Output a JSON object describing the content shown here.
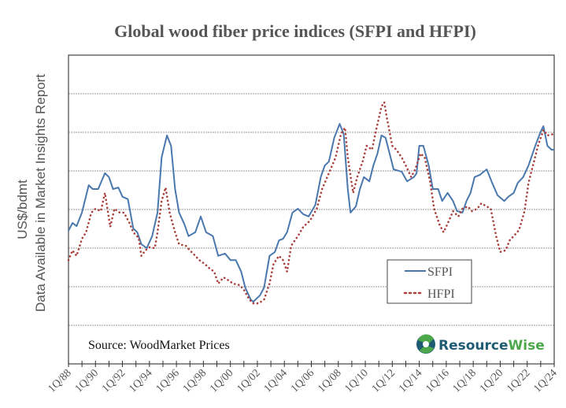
{
  "chart_data": {
    "type": "line",
    "title": "Global wood fiber price indices (SFPI and HFPI)",
    "xlabel": "",
    "ylabel": "US$/bdmt",
    "ylabel_note": "Data Available in Market Insights Report",
    "xlim": [
      1988,
      2024
    ],
    "ylim": [
      0,
      8
    ],
    "grid": true,
    "legend_position": "lower-right",
    "x_tick_labels": [
      "1Q/88",
      "1Q/90",
      "1Q/92",
      "1Q/94",
      "1Q/96",
      "1Q/98",
      "1Q/00",
      "1Q/02",
      "1Q/04",
      "1Q/06",
      "1Q/08",
      "1Q/10",
      "1Q/12",
      "1Q/14",
      "1Q/16",
      "1Q/18",
      "1Q/20",
      "1Q/22",
      "1Q/24"
    ],
    "annotation": "Source: WoodMarket Prices",
    "logo": {
      "part1": "Resource",
      "part2": "Wise"
    },
    "series": [
      {
        "name": "SFPI",
        "color": "#4a78ad",
        "style": "solid",
        "points": [
          [
            1988.0,
            3.45
          ],
          [
            1988.3,
            3.65
          ],
          [
            1988.6,
            3.57
          ],
          [
            1989.0,
            3.92
          ],
          [
            1989.5,
            4.63
          ],
          [
            1989.8,
            4.53
          ],
          [
            1990.2,
            4.53
          ],
          [
            1990.7,
            4.94
          ],
          [
            1991.0,
            4.84
          ],
          [
            1991.3,
            4.53
          ],
          [
            1991.7,
            4.57
          ],
          [
            1992.0,
            4.33
          ],
          [
            1992.4,
            4.27
          ],
          [
            1992.8,
            3.51
          ],
          [
            1993.1,
            3.41
          ],
          [
            1993.4,
            3.1
          ],
          [
            1993.8,
            3.0
          ],
          [
            1994.2,
            3.31
          ],
          [
            1994.6,
            3.92
          ],
          [
            1994.9,
            5.35
          ],
          [
            1995.3,
            5.92
          ],
          [
            1995.6,
            5.65
          ],
          [
            1995.9,
            4.53
          ],
          [
            1996.2,
            3.92
          ],
          [
            1996.6,
            3.61
          ],
          [
            1996.9,
            3.31
          ],
          [
            1997.4,
            3.41
          ],
          [
            1997.8,
            3.82
          ],
          [
            1998.2,
            3.41
          ],
          [
            1998.7,
            3.31
          ],
          [
            1999.1,
            2.8
          ],
          [
            1999.6,
            2.86
          ],
          [
            2000.0,
            2.69
          ],
          [
            2000.4,
            2.69
          ],
          [
            2000.8,
            2.39
          ],
          [
            2001.1,
            1.98
          ],
          [
            2001.5,
            1.67
          ],
          [
            2001.7,
            1.61
          ],
          [
            2002.2,
            1.78
          ],
          [
            2002.5,
            1.98
          ],
          [
            2002.9,
            2.8
          ],
          [
            2003.3,
            2.9
          ],
          [
            2003.6,
            3.2
          ],
          [
            2003.9,
            3.24
          ],
          [
            2004.2,
            3.41
          ],
          [
            2004.6,
            3.92
          ],
          [
            2005.0,
            4.02
          ],
          [
            2005.4,
            3.88
          ],
          [
            2005.8,
            3.82
          ],
          [
            2006.3,
            4.12
          ],
          [
            2006.7,
            4.84
          ],
          [
            2007.0,
            5.14
          ],
          [
            2007.3,
            5.24
          ],
          [
            2007.7,
            5.86
          ],
          [
            2008.1,
            6.22
          ],
          [
            2008.4,
            5.96
          ],
          [
            2008.7,
            4.53
          ],
          [
            2008.9,
            3.92
          ],
          [
            2009.3,
            4.08
          ],
          [
            2009.6,
            4.53
          ],
          [
            2009.9,
            4.84
          ],
          [
            2010.3,
            4.73
          ],
          [
            2010.6,
            5.14
          ],
          [
            2010.9,
            5.45
          ],
          [
            2011.2,
            5.92
          ],
          [
            2011.5,
            5.86
          ],
          [
            2011.8,
            5.45
          ],
          [
            2012.1,
            5.04
          ],
          [
            2012.7,
            4.98
          ],
          [
            2013.1,
            4.73
          ],
          [
            2013.6,
            4.84
          ],
          [
            2013.8,
            4.94
          ],
          [
            2014.0,
            5.65
          ],
          [
            2014.3,
            5.65
          ],
          [
            2014.7,
            5.14
          ],
          [
            2015.0,
            4.53
          ],
          [
            2015.4,
            4.53
          ],
          [
            2015.7,
            4.22
          ],
          [
            2016.1,
            4.43
          ],
          [
            2016.5,
            4.22
          ],
          [
            2016.8,
            3.96
          ],
          [
            2017.2,
            3.92
          ],
          [
            2017.5,
            4.22
          ],
          [
            2017.8,
            4.43
          ],
          [
            2018.1,
            4.84
          ],
          [
            2018.5,
            4.9
          ],
          [
            2019.0,
            5.04
          ],
          [
            2019.4,
            4.69
          ],
          [
            2019.8,
            4.37
          ],
          [
            2020.3,
            4.22
          ],
          [
            2020.6,
            4.33
          ],
          [
            2021.0,
            4.43
          ],
          [
            2021.3,
            4.69
          ],
          [
            2021.7,
            4.84
          ],
          [
            2022.1,
            5.14
          ],
          [
            2022.6,
            5.65
          ],
          [
            2023.0,
            6.02
          ],
          [
            2023.2,
            6.16
          ],
          [
            2023.5,
            5.65
          ],
          [
            2023.8,
            5.55
          ],
          [
            2024.0,
            5.55
          ]
        ]
      },
      {
        "name": "HFPI",
        "color": "#a8403c",
        "style": "dotted",
        "points": [
          [
            1988.0,
            2.69
          ],
          [
            1988.3,
            2.94
          ],
          [
            1988.6,
            2.8
          ],
          [
            1989.0,
            3.24
          ],
          [
            1989.3,
            3.41
          ],
          [
            1989.7,
            3.92
          ],
          [
            1990.0,
            4.02
          ],
          [
            1990.4,
            3.96
          ],
          [
            1990.7,
            4.43
          ],
          [
            1991.1,
            3.55
          ],
          [
            1991.4,
            4.02
          ],
          [
            1991.8,
            3.92
          ],
          [
            1992.1,
            3.92
          ],
          [
            1992.5,
            3.67
          ],
          [
            1992.8,
            3.41
          ],
          [
            1993.2,
            3.27
          ],
          [
            1993.4,
            2.8
          ],
          [
            1993.7,
            2.94
          ],
          [
            1994.0,
            3.02
          ],
          [
            1994.4,
            3.0
          ],
          [
            1994.6,
            3.41
          ],
          [
            1994.9,
            4.22
          ],
          [
            1995.2,
            4.57
          ],
          [
            1995.5,
            3.92
          ],
          [
            1995.9,
            3.41
          ],
          [
            1996.2,
            3.1
          ],
          [
            1996.7,
            3.06
          ],
          [
            1997.0,
            2.94
          ],
          [
            1997.4,
            2.8
          ],
          [
            1997.7,
            2.69
          ],
          [
            1998.1,
            2.59
          ],
          [
            1998.4,
            2.49
          ],
          [
            1998.8,
            2.39
          ],
          [
            1999.1,
            2.08
          ],
          [
            1999.5,
            2.24
          ],
          [
            1999.8,
            2.18
          ],
          [
            2000.2,
            2.08
          ],
          [
            2000.7,
            2.04
          ],
          [
            2001.0,
            1.92
          ],
          [
            2001.4,
            1.67
          ],
          [
            2001.7,
            1.57
          ],
          [
            2002.1,
            1.57
          ],
          [
            2002.5,
            1.67
          ],
          [
            2002.9,
            2.08
          ],
          [
            2003.2,
            2.59
          ],
          [
            2003.6,
            2.8
          ],
          [
            2003.9,
            2.69
          ],
          [
            2004.2,
            2.39
          ],
          [
            2004.5,
            3.06
          ],
          [
            2005.0,
            3.31
          ],
          [
            2005.4,
            3.55
          ],
          [
            2005.9,
            3.71
          ],
          [
            2006.4,
            4.02
          ],
          [
            2006.8,
            4.53
          ],
          [
            2007.3,
            4.94
          ],
          [
            2007.8,
            5.35
          ],
          [
            2008.2,
            5.96
          ],
          [
            2008.5,
            6.12
          ],
          [
            2008.7,
            5.35
          ],
          [
            2009.1,
            4.43
          ],
          [
            2009.4,
            4.84
          ],
          [
            2009.8,
            5.24
          ],
          [
            2010.1,
            5.65
          ],
          [
            2010.5,
            5.55
          ],
          [
            2010.8,
            6.06
          ],
          [
            2011.2,
            6.67
          ],
          [
            2011.4,
            6.78
          ],
          [
            2011.6,
            6.37
          ],
          [
            2012.0,
            5.65
          ],
          [
            2012.3,
            5.55
          ],
          [
            2012.7,
            5.35
          ],
          [
            2013.0,
            5.14
          ],
          [
            2013.4,
            4.84
          ],
          [
            2013.7,
            5.04
          ],
          [
            2014.1,
            5.45
          ],
          [
            2014.4,
            5.35
          ],
          [
            2014.8,
            4.73
          ],
          [
            2015.1,
            4.02
          ],
          [
            2015.5,
            3.61
          ],
          [
            2015.8,
            3.41
          ],
          [
            2016.2,
            3.71
          ],
          [
            2016.5,
            3.96
          ],
          [
            2016.9,
            3.82
          ],
          [
            2017.2,
            4.02
          ],
          [
            2017.6,
            4.08
          ],
          [
            2017.9,
            3.96
          ],
          [
            2018.3,
            4.02
          ],
          [
            2018.6,
            4.16
          ],
          [
            2019.0,
            4.08
          ],
          [
            2019.3,
            4.02
          ],
          [
            2019.7,
            3.31
          ],
          [
            2020.0,
            2.9
          ],
          [
            2020.4,
            2.94
          ],
          [
            2020.7,
            3.2
          ],
          [
            2021.1,
            3.35
          ],
          [
            2021.4,
            3.47
          ],
          [
            2021.8,
            3.96
          ],
          [
            2022.1,
            4.69
          ],
          [
            2022.5,
            5.24
          ],
          [
            2022.8,
            5.65
          ],
          [
            2023.2,
            6.06
          ],
          [
            2023.5,
            5.92
          ],
          [
            2024.0,
            5.96
          ]
        ]
      }
    ]
  }
}
